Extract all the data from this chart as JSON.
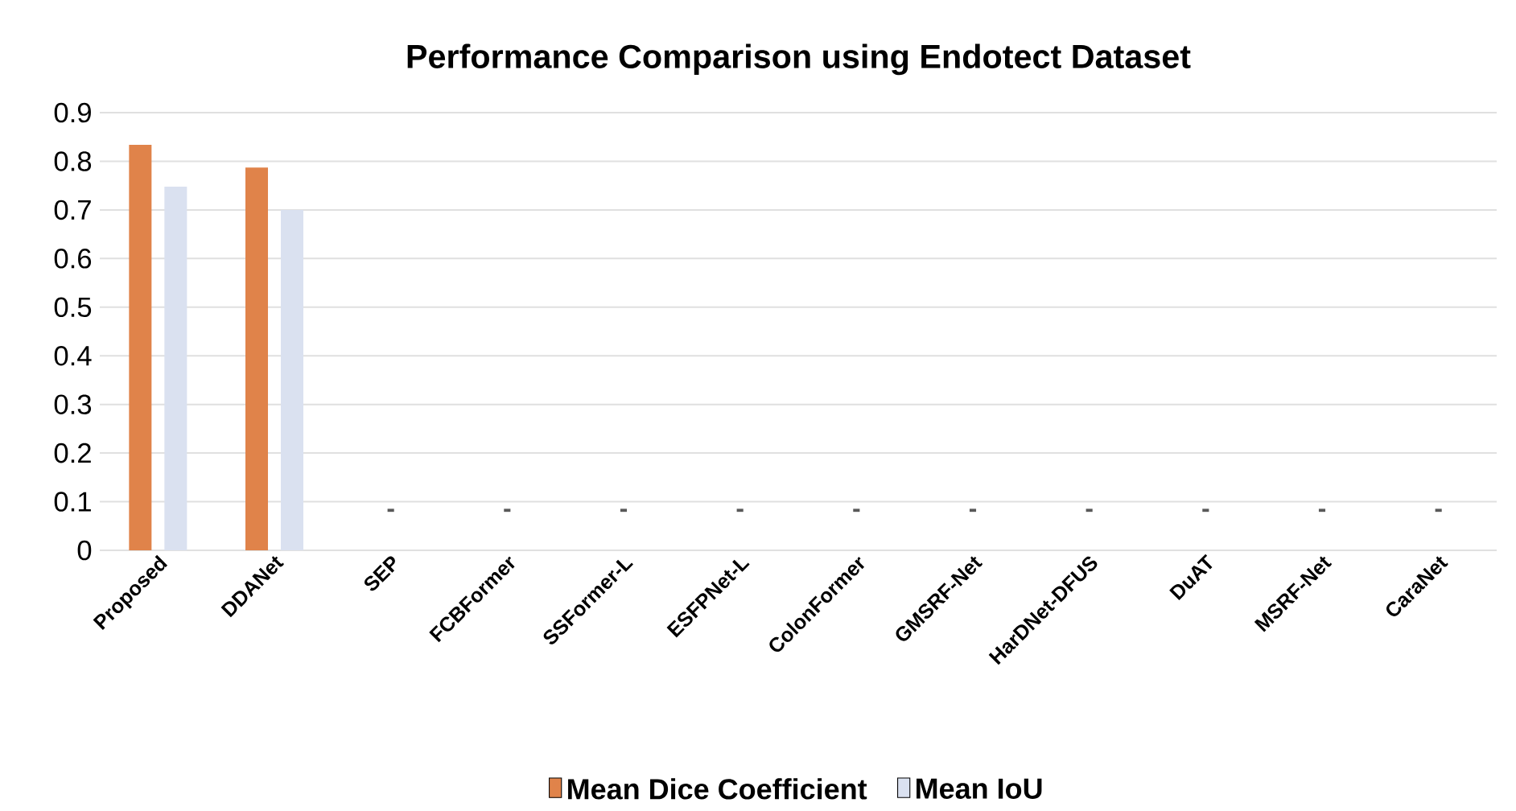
{
  "chart_data": {
    "type": "bar",
    "title": "Performance Comparison using Endotect Dataset",
    "categories": [
      "Proposed",
      "DDANet",
      "SEP",
      "FCBFormer",
      "SSFormer-L",
      "ESFPNet-L",
      "ColonFormer",
      "GMSRF-Net",
      "HarDNet-DFUS",
      "DuAT",
      "MSRF-Net",
      "CaraNet"
    ],
    "series": [
      {
        "name": "Mean Dice Coefficient",
        "color": "#e0834a",
        "values": [
          0.834,
          0.787,
          null,
          null,
          null,
          null,
          null,
          null,
          null,
          null,
          null,
          null
        ],
        "value_labels": [
          null,
          null,
          "-",
          "-",
          "-",
          "-",
          "-",
          "-",
          "-",
          "-",
          "-",
          "-"
        ]
      },
      {
        "name": "Mean IoU",
        "color": "#dae1f0",
        "values": [
          0.748,
          0.7,
          null,
          null,
          null,
          null,
          null,
          null,
          null,
          null,
          null,
          null
        ]
      }
    ],
    "ylim": [
      0,
      0.9
    ],
    "yticks": [
      0,
      0.1,
      0.2,
      0.3,
      0.4,
      0.5,
      0.6,
      0.7,
      0.8,
      0.9
    ],
    "grid": "y",
    "legend": "bottom"
  }
}
